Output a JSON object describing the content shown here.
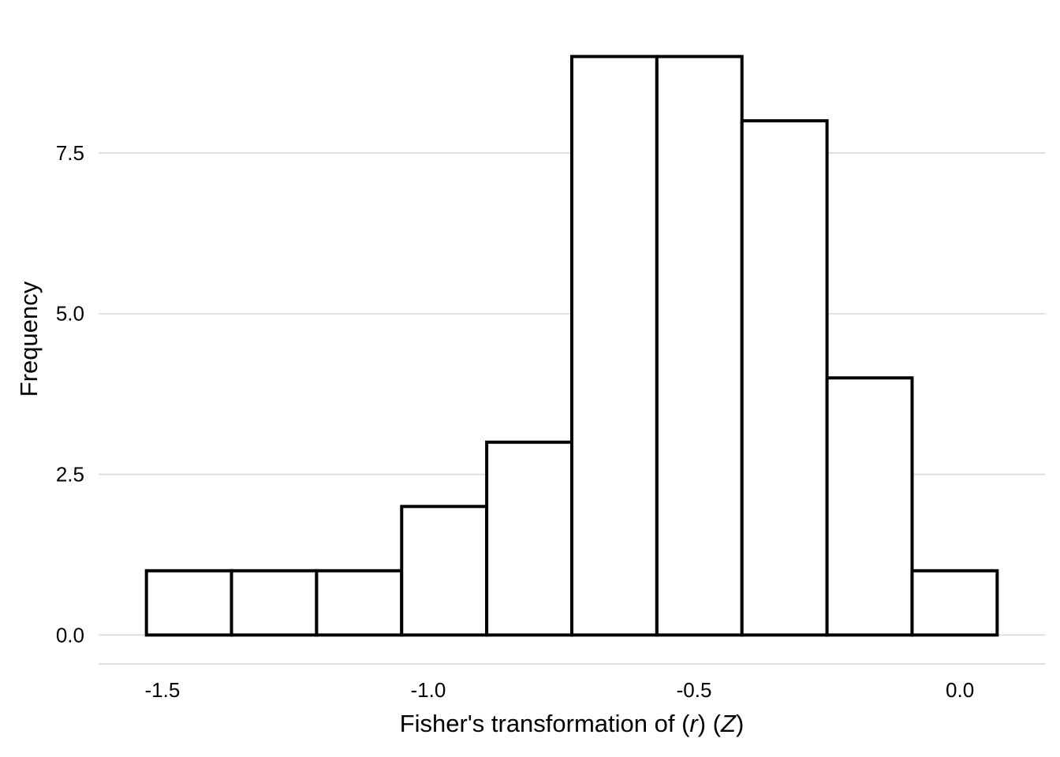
{
  "chart_data": {
    "type": "bar",
    "bins": [
      {
        "x0": -1.53,
        "x1": -1.37,
        "count": 1
      },
      {
        "x0": -1.37,
        "x1": -1.21,
        "count": 1
      },
      {
        "x0": -1.21,
        "x1": -1.05,
        "count": 1
      },
      {
        "x0": -1.05,
        "x1": -0.89,
        "count": 2
      },
      {
        "x0": -0.89,
        "x1": -0.73,
        "count": 3
      },
      {
        "x0": -0.73,
        "x1": -0.57,
        "count": 9
      },
      {
        "x0": -0.57,
        "x1": -0.41,
        "count": 9
      },
      {
        "x0": -0.41,
        "x1": -0.25,
        "count": 8
      },
      {
        "x0": -0.25,
        "x1": -0.09,
        "count": 4
      },
      {
        "x0": -0.09,
        "x1": 0.07,
        "count": 1
      }
    ],
    "xlim": [
      -1.62,
      0.16
    ],
    "ylim": [
      -0.45,
      9.45
    ],
    "xticks": [
      -1.5,
      -1.0,
      -0.5,
      0.0
    ],
    "xtick_labels": [
      "-1.5",
      "-1.0",
      "-0.5",
      "0.0"
    ],
    "yticks": [
      0.0,
      2.5,
      5.0,
      7.5
    ],
    "ytick_labels": [
      "0.0",
      "2.5",
      "5.0",
      "7.5"
    ],
    "xlabel_main": "Fisher's transformation of (",
    "xlabel_r": "r",
    "xlabel_mid": ") (",
    "xlabel_z": "Z",
    "xlabel_end": ")",
    "ylabel": "Frequency",
    "grid": "horizontal",
    "colors": {
      "bar_fill": "#ffffff",
      "bar_stroke": "#000000",
      "grid": "#d9d9d9"
    }
  }
}
